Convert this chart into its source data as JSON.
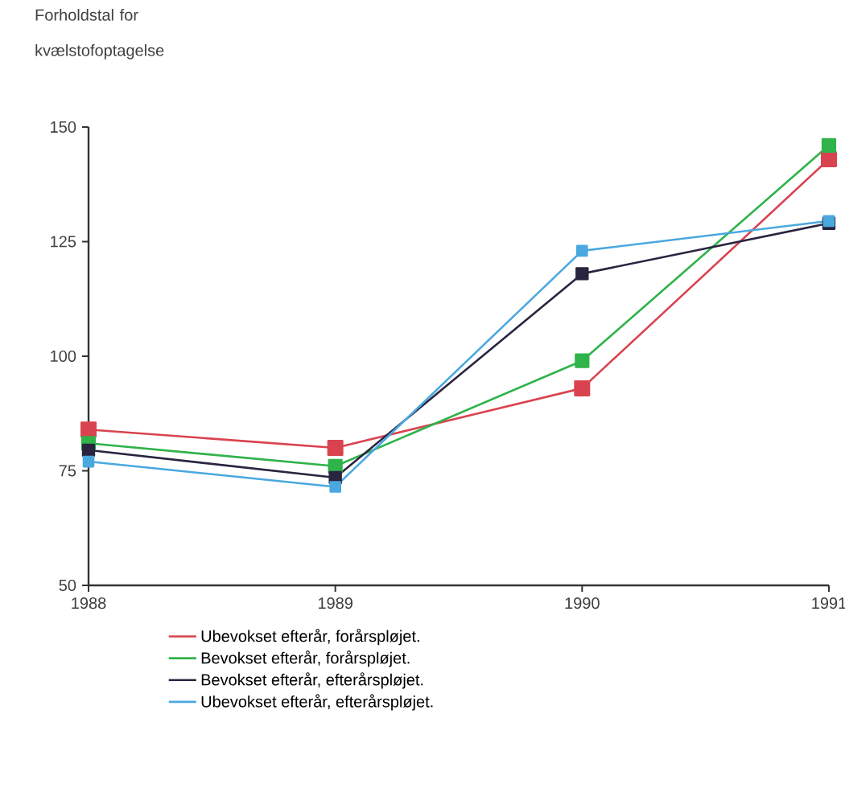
{
  "chart_data": {
    "type": "line",
    "ylabel": "Forholdstal for kvælstofoptagelse",
    "x": [
      1988,
      1989,
      1990,
      1991
    ],
    "xlim": [
      1988,
      1991
    ],
    "xticks": [
      1988,
      1989,
      1990,
      1991
    ],
    "ylim": [
      50,
      150
    ],
    "yticks": [
      50,
      75,
      100,
      125,
      150
    ],
    "marker": "square",
    "line_style": "solid",
    "grid": false,
    "legend": "bottom",
    "series": [
      {
        "name": "Ubevokset efterår, forårspløjet.",
        "color": "#d9434f",
        "values": [
          84,
          80,
          93,
          143
        ]
      },
      {
        "name": "Bevokset efterår, forårspløjet.",
        "color": "#2fb34a",
        "values": [
          81,
          76,
          99,
          146
        ]
      },
      {
        "name": "Bevokset efterår, efterårspløjet.",
        "color": "#2a2440",
        "values": [
          79.5,
          73.5,
          118,
          129
        ]
      },
      {
        "name": "Ubevokset efterår, efterårspløjet.",
        "color": "#4aa8e0",
        "values": [
          77,
          71.5,
          123,
          129.5
        ]
      }
    ]
  }
}
